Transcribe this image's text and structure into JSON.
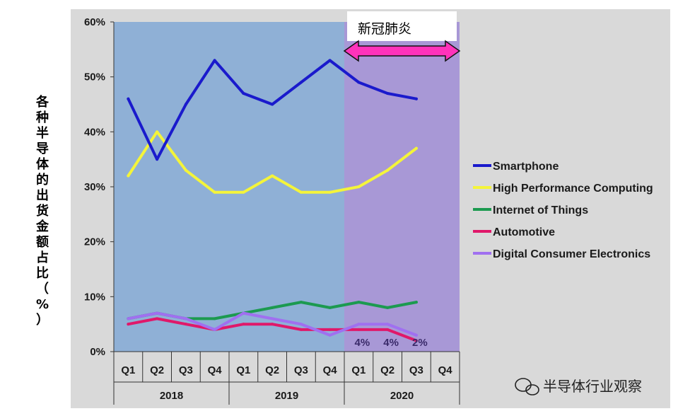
{
  "chart_data": {
    "type": "line",
    "ylabel": "各种半导体的出货金额占比（%）",
    "ylim": [
      0,
      60
    ],
    "yticks": [
      "0%",
      "10%",
      "20%",
      "30%",
      "40%",
      "50%",
      "60%"
    ],
    "categories": [
      "Q1",
      "Q2",
      "Q3",
      "Q4",
      "Q1",
      "Q2",
      "Q3",
      "Q4",
      "Q1",
      "Q2",
      "Q3",
      "Q4"
    ],
    "years": [
      "2018",
      "2019",
      "2020"
    ],
    "grid": false,
    "legend_position": "right",
    "series": [
      {
        "name": "Smartphone",
        "color": "#1a1acc",
        "values": [
          46,
          35,
          45,
          53,
          47,
          45,
          49,
          53,
          49,
          47,
          46,
          null
        ]
      },
      {
        "name": "High Performance Computing",
        "color": "#f4f43a",
        "values": [
          32,
          40,
          33,
          29,
          29,
          32,
          29,
          29,
          30,
          33,
          37,
          null
        ]
      },
      {
        "name": "Internet of Things",
        "color": "#1c9a50",
        "values": [
          6,
          7,
          6,
          6,
          7,
          8,
          9,
          8,
          9,
          8,
          9,
          null
        ]
      },
      {
        "name": "Automotive",
        "color": "#e0186a",
        "values": [
          5,
          6,
          5,
          4,
          5,
          5,
          4,
          4,
          4,
          4,
          2,
          null
        ]
      },
      {
        "name": "Digital Consumer Electronics",
        "color": "#a070f0",
        "values": [
          6,
          7,
          6,
          4,
          7,
          6,
          5,
          3,
          5,
          5,
          3,
          null
        ]
      }
    ],
    "annotations": {
      "period_label": "新冠肺炎",
      "data_labels": [
        {
          "index": 8,
          "text": "4%",
          "value": 4
        },
        {
          "index": 9,
          "text": "4%",
          "value": 4
        },
        {
          "index": 10,
          "text": "2%",
          "value": 2
        }
      ]
    }
  },
  "watermark": {
    "text": "半导体行业观察",
    "icon": "wechat-icon"
  }
}
